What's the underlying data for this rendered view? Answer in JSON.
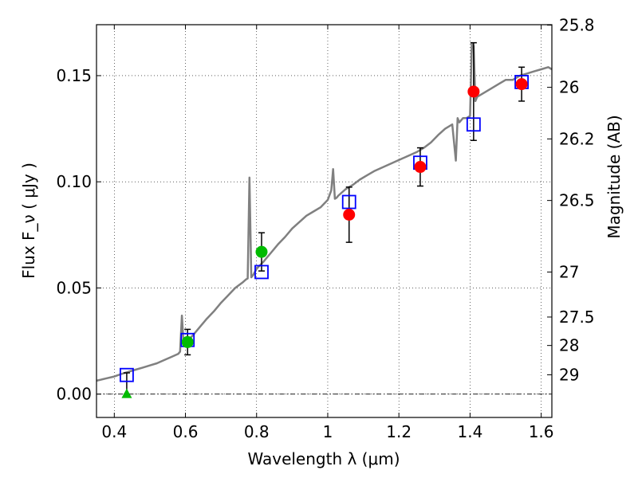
{
  "chart_data": {
    "type": "scatter",
    "xlabel": "Wavelength  λ (μm)",
    "ylabel": "Flux  F_ν  ( μJy )",
    "y2label": "Magnitude (AB)",
    "xlim": [
      0.35,
      1.63
    ],
    "ylim": [
      -0.011,
      0.174
    ],
    "grid": true,
    "x_ticks": [
      {
        "value": 0.4,
        "label": "0.4"
      },
      {
        "value": 0.6,
        "label": "0.6"
      },
      {
        "value": 0.8,
        "label": "0.8"
      },
      {
        "value": 1.0,
        "label": "1"
      },
      {
        "value": 1.2,
        "label": "1.2"
      },
      {
        "value": 1.4,
        "label": "1.4"
      },
      {
        "value": 1.6,
        "label": "1.6"
      }
    ],
    "y_ticks": [
      {
        "value": 0.0,
        "label": "0.00"
      },
      {
        "value": 0.05,
        "label": "0.05"
      },
      {
        "value": 0.1,
        "label": "0.10"
      },
      {
        "value": 0.15,
        "label": "0.15"
      }
    ],
    "y2_ticks": [
      {
        "flux": 0.1738,
        "label": "25.8"
      },
      {
        "flux": 0.1445,
        "label": "26"
      },
      {
        "flux": 0.1202,
        "label": "26.2"
      },
      {
        "flux": 0.0912,
        "label": "26.5"
      },
      {
        "flux": 0.0575,
        "label": "27"
      },
      {
        "flux": 0.0363,
        "label": "27.5"
      },
      {
        "flux": 0.0229,
        "label": "28"
      },
      {
        "flux": 0.0091,
        "label": "29"
      }
    ],
    "zero_line": 0.0,
    "series": [
      {
        "kind": "model_spectrum",
        "color": "#808080",
        "x": [
          0.35,
          0.38,
          0.4,
          0.42,
          0.44,
          0.46,
          0.48,
          0.5,
          0.52,
          0.54,
          0.56,
          0.58,
          0.585,
          0.59,
          0.595,
          0.6,
          0.62,
          0.64,
          0.66,
          0.68,
          0.7,
          0.72,
          0.74,
          0.76,
          0.77,
          0.775,
          0.78,
          0.785,
          0.79,
          0.8,
          0.82,
          0.84,
          0.86,
          0.88,
          0.9,
          0.92,
          0.94,
          0.96,
          0.98,
          1.0,
          1.01,
          1.015,
          1.02,
          1.025,
          1.03,
          1.05,
          1.07,
          1.09,
          1.11,
          1.13,
          1.15,
          1.17,
          1.19,
          1.21,
          1.23,
          1.25,
          1.27,
          1.29,
          1.31,
          1.33,
          1.35,
          1.36,
          1.365,
          1.37,
          1.38,
          1.39,
          1.4,
          1.405,
          1.41,
          1.415,
          1.42,
          1.44,
          1.46,
          1.48,
          1.5,
          1.52,
          1.54,
          1.56,
          1.58,
          1.6,
          1.62,
          1.63
        ],
        "y": [
          0.0063,
          0.0075,
          0.0083,
          0.0095,
          0.0105,
          0.0115,
          0.0125,
          0.0135,
          0.0145,
          0.016,
          0.0175,
          0.019,
          0.02,
          0.037,
          0.0225,
          0.024,
          0.0275,
          0.0315,
          0.0355,
          0.039,
          0.043,
          0.0465,
          0.05,
          0.0525,
          0.054,
          0.0545,
          0.102,
          0.055,
          0.056,
          0.059,
          0.0625,
          0.0665,
          0.0705,
          0.074,
          0.078,
          0.081,
          0.084,
          0.086,
          0.088,
          0.0915,
          0.096,
          0.106,
          0.092,
          0.0925,
          0.0935,
          0.0965,
          0.0985,
          0.101,
          0.103,
          0.105,
          0.1065,
          0.108,
          0.1095,
          0.111,
          0.1125,
          0.114,
          0.116,
          0.1185,
          0.122,
          0.125,
          0.127,
          0.11,
          0.13,
          0.128,
          0.13,
          0.13,
          0.131,
          0.165,
          0.164,
          0.138,
          0.14,
          0.142,
          0.144,
          0.146,
          0.148,
          0.148,
          0.15,
          0.151,
          0.152,
          0.153,
          0.154,
          0.153
        ]
      },
      {
        "kind": "model_photometry",
        "marker": "open-square",
        "color": "#0000ff",
        "x": [
          0.435,
          0.606,
          0.814,
          1.06,
          1.26,
          1.41,
          1.545
        ],
        "y": [
          0.009,
          0.0255,
          0.0575,
          0.0905,
          0.109,
          0.127,
          0.147
        ]
      },
      {
        "kind": "observed_optical",
        "marker": "filled-circle",
        "color": "#00bb00",
        "x": [
          0.606,
          0.814
        ],
        "y": [
          0.0245,
          0.067
        ],
        "yerr": [
          0.006,
          0.009
        ]
      },
      {
        "kind": "observed_optical_upper",
        "marker": "filled-triangle",
        "color": "#00bb00",
        "x": [
          0.435
        ],
        "y": [
          0.0
        ],
        "yerr_upper": [
          0.01
        ]
      },
      {
        "kind": "observed_nir",
        "marker": "filled-circle",
        "color": "#ff0000",
        "x": [
          1.06,
          1.26,
          1.41,
          1.545
        ],
        "y": [
          0.0845,
          0.107,
          0.1425,
          0.146
        ],
        "yerr": [
          0.013,
          0.009,
          0.023,
          0.008
        ]
      }
    ]
  }
}
